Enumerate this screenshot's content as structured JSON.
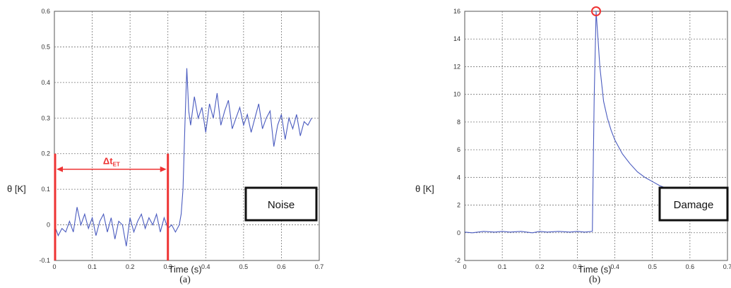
{
  "chart_data": [
    {
      "type": "line",
      "caption": "(a)",
      "xlabel": "Time (s)",
      "ylabel": "θ [K]",
      "xlim": [
        0,
        0.7
      ],
      "ylim": [
        -0.1,
        0.6
      ],
      "xticks": [
        "0",
        "0.1",
        "0.2",
        "0.3",
        "0.4",
        "0.5",
        "0.6",
        "0.7"
      ],
      "yticks": [
        "-0.1",
        "0",
        "0.1",
        "0.2",
        "0.3",
        "0.4",
        "0.5",
        "0.6"
      ],
      "grid": true,
      "box_label": "Noise",
      "interval_annotation": {
        "text": "Δt",
        "subscript": "ET",
        "x_start": 0,
        "x_end": 0.3,
        "color": "#ee3333"
      },
      "series": [
        {
          "color": "#4a5bbf",
          "x": [
            0,
            0.01,
            0.02,
            0.03,
            0.04,
            0.05,
            0.06,
            0.07,
            0.08,
            0.09,
            0.1,
            0.11,
            0.12,
            0.13,
            0.14,
            0.15,
            0.16,
            0.17,
            0.18,
            0.19,
            0.2,
            0.21,
            0.22,
            0.23,
            0.24,
            0.25,
            0.26,
            0.27,
            0.28,
            0.29,
            0.3,
            0.31,
            0.32,
            0.33,
            0.335,
            0.34,
            0.345,
            0.35,
            0.355,
            0.36,
            0.37,
            0.38,
            0.39,
            0.4,
            0.41,
            0.42,
            0.43,
            0.44,
            0.45,
            0.46,
            0.47,
            0.48,
            0.49,
            0.5,
            0.51,
            0.52,
            0.53,
            0.54,
            0.55,
            0.56,
            0.57,
            0.58,
            0.59,
            0.6,
            0.61,
            0.62,
            0.63,
            0.64,
            0.65,
            0.66,
            0.67,
            0.68
          ],
          "y": [
            0.0,
            -0.03,
            -0.01,
            -0.02,
            0.01,
            -0.02,
            0.05,
            0.0,
            0.03,
            -0.01,
            0.02,
            -0.03,
            0.01,
            0.03,
            -0.02,
            0.02,
            -0.04,
            0.01,
            0.0,
            -0.06,
            0.02,
            -0.02,
            0.01,
            0.03,
            -0.01,
            0.02,
            0.0,
            0.03,
            -0.02,
            0.02,
            -0.01,
            0.0,
            -0.02,
            0.0,
            0.03,
            0.1,
            0.28,
            0.44,
            0.32,
            0.28,
            0.36,
            0.3,
            0.33,
            0.26,
            0.34,
            0.3,
            0.37,
            0.28,
            0.32,
            0.35,
            0.27,
            0.3,
            0.33,
            0.28,
            0.31,
            0.26,
            0.3,
            0.34,
            0.27,
            0.3,
            0.32,
            0.22,
            0.28,
            0.31,
            0.24,
            0.3,
            0.27,
            0.31,
            0.25,
            0.29,
            0.28,
            0.3
          ]
        }
      ]
    },
    {
      "type": "line",
      "caption": "(b)",
      "xlabel": "Time (s)",
      "ylabel": "θ [K]",
      "xlim": [
        0,
        0.7
      ],
      "ylim": [
        -2,
        16
      ],
      "xticks": [
        "0",
        "0.1",
        "0.2",
        "0.3",
        "0.4",
        "0.5",
        "0.6",
        "0.7"
      ],
      "yticks": [
        "-2",
        "0",
        "2",
        "4",
        "6",
        "8",
        "10",
        "12",
        "14",
        "16"
      ],
      "grid": true,
      "box_label": "Damage",
      "peak_marker": {
        "x": 0.35,
        "y": 16,
        "color": "#ee3333"
      },
      "series": [
        {
          "color": "#4a5bbf",
          "x": [
            0,
            0.02,
            0.05,
            0.08,
            0.1,
            0.12,
            0.15,
            0.18,
            0.2,
            0.22,
            0.25,
            0.28,
            0.3,
            0.32,
            0.34,
            0.345,
            0.35,
            0.355,
            0.36,
            0.37,
            0.38,
            0.39,
            0.4,
            0.42,
            0.44,
            0.46,
            0.48,
            0.5,
            0.52,
            0.55,
            0.58,
            0.6,
            0.62,
            0.64,
            0.66,
            0.68
          ],
          "y": [
            0.05,
            0.0,
            0.1,
            0.05,
            0.1,
            0.05,
            0.1,
            0.0,
            0.1,
            0.05,
            0.1,
            0.05,
            0.1,
            0.05,
            0.1,
            9.8,
            16.0,
            14.0,
            12.0,
            9.5,
            8.3,
            7.4,
            6.7,
            5.7,
            5.0,
            4.4,
            4.0,
            3.7,
            3.4,
            3.1,
            2.8,
            2.7,
            2.6,
            2.5,
            2.4,
            2.35
          ]
        }
      ]
    }
  ]
}
